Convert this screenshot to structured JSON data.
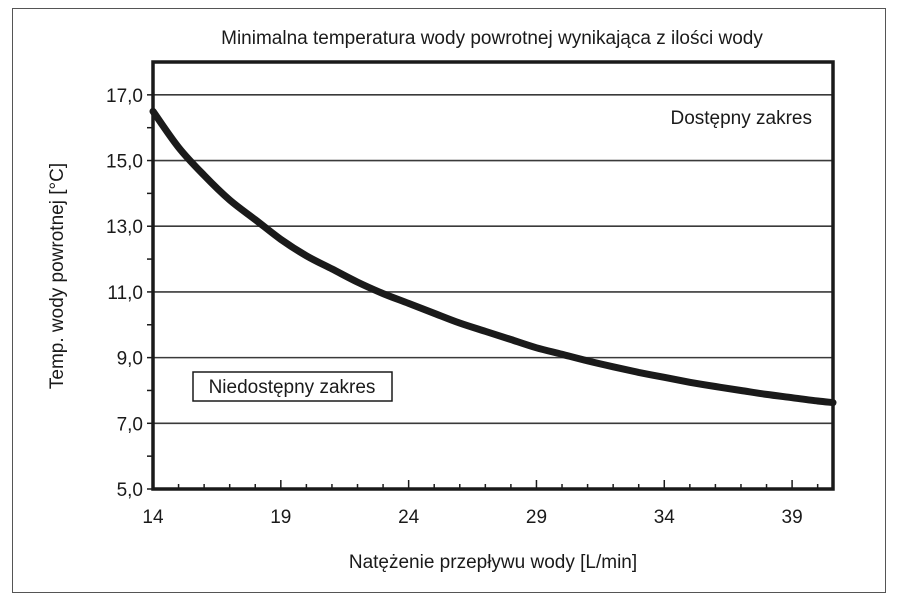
{
  "chart_data": {
    "type": "line",
    "title": "Minimalna temperatura wody powrotnej wynikająca z ilości wody",
    "xlabel": "Natężenie przepływu wody [L/min]",
    "ylabel": "Temp. wody powrotnej [°C]",
    "xlim": [
      14,
      40.6
    ],
    "ylim": [
      5,
      18
    ],
    "x_ticks": [
      "14",
      "19",
      "24",
      "29",
      "34",
      "39"
    ],
    "y_ticks": [
      "5,0",
      "7,0",
      "9,0",
      "11,0",
      "13,0",
      "15,0",
      "17,0"
    ],
    "grid": "horizontal",
    "series": [
      {
        "x": [
          14,
          15,
          16,
          17,
          18,
          19,
          20,
          21,
          22,
          23,
          24,
          25,
          26,
          27,
          28,
          29,
          30,
          31,
          32,
          33,
          34,
          35,
          36,
          37,
          38,
          39,
          40,
          40.6
        ],
        "y": [
          16.5,
          15.4,
          14.55,
          13.8,
          13.2,
          12.6,
          12.1,
          11.7,
          11.3,
          10.95,
          10.65,
          10.35,
          10.05,
          9.8,
          9.55,
          9.3,
          9.1,
          8.9,
          8.72,
          8.55,
          8.4,
          8.25,
          8.12,
          8.0,
          7.88,
          7.78,
          7.68,
          7.63
        ]
      }
    ],
    "regions": {
      "available": "Dostępny zakres",
      "unavailable": "Niedostępny zakres"
    },
    "colors": {
      "curve": "#1a1a1a",
      "grid": "#3a3a3a",
      "axis": "#1a1a1a",
      "frame": "#555555"
    }
  }
}
